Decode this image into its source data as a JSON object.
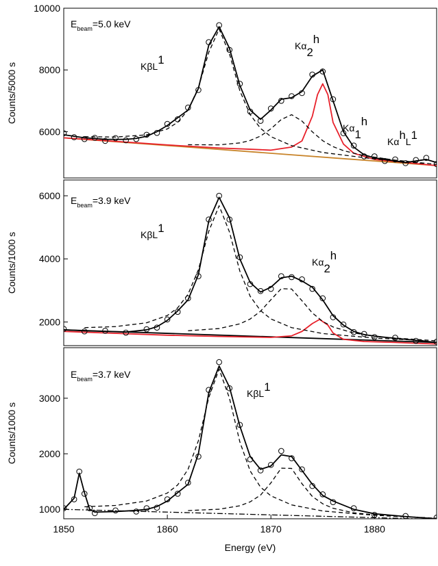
{
  "chart_data": [
    {
      "type": "line",
      "ylabel": "Counts/5000 s",
      "xlim": [
        1850,
        1886
      ],
      "ylim": [
        4500,
        10000
      ],
      "yticks": [
        6000,
        8000,
        10000
      ],
      "annotations": [
        {
          "parts": [
            {
              "t": "E"
            },
            {
              "t": "beam",
              "pos": "sub"
            },
            {
              "t": "=5.0 keV"
            }
          ]
        },
        {
          "parts": [
            {
              "t": "KβL"
            },
            {
              "t": "1",
              "pos": "sup"
            }
          ]
        },
        {
          "parts": [
            {
              "t": "Kα"
            },
            {
              "t": "2",
              "pos": "sub"
            },
            {
              "t": "h",
              "pos": "sup"
            }
          ]
        },
        {
          "parts": [
            {
              "t": "Kα"
            },
            {
              "t": "1",
              "pos": "sub"
            },
            {
              "t": "h",
              "pos": "sup"
            }
          ]
        },
        {
          "parts": [
            {
              "t": "Kα"
            },
            {
              "t": "h",
              "pos": "sup"
            },
            {
              "t": "L"
            },
            {
              "t": "1",
              "pos": "sup"
            }
          ]
        }
      ],
      "series": [
        {
          "style": "solid",
          "color": "#c8842a",
          "x": [
            1850,
            1886
          ],
          "values": [
            5800,
            4900
          ]
        },
        {
          "style": "solid",
          "color": "#e8202a",
          "x": [
            1850,
            1860,
            1865,
            1868,
            1870,
            1872,
            1873,
            1874,
            1874.5,
            1875,
            1875.5,
            1876,
            1877,
            1878,
            1880,
            1883,
            1886
          ],
          "values": [
            5800,
            5570,
            5470,
            5430,
            5400,
            5500,
            5700,
            6500,
            7200,
            7550,
            7200,
            6300,
            5600,
            5300,
            5100,
            5000,
            4900
          ]
        },
        {
          "style": "dash",
          "color": "#000000",
          "x": [
            1852,
            1855,
            1858,
            1860,
            1861,
            1862,
            1863,
            1864,
            1865,
            1866,
            1867,
            1868,
            1869,
            1870,
            1872,
            1875,
            1880,
            1885
          ],
          "values": [
            5838,
            5825,
            5897,
            6088,
            6305,
            6700,
            7425,
            8570,
            9325,
            8520,
            7325,
            6550,
            6105,
            5838,
            5547,
            5325,
            5117,
            4963
          ]
        },
        {
          "style": "dash",
          "color": "#000000",
          "x": [
            1862,
            1865,
            1867,
            1868,
            1869,
            1870,
            1871,
            1872,
            1873,
            1874,
            1875,
            1876,
            1877,
            1879,
            1882,
            1886
          ],
          "values": [
            5577,
            5572,
            5635,
            5714,
            5858,
            6093,
            6393,
            6550,
            6343,
            5993,
            5708,
            5514,
            5385,
            5222,
            5077,
            4940
          ]
        },
        {
          "style": "solid",
          "color": "#000000",
          "x": [
            1850,
            1851,
            1852,
            1853,
            1854,
            1855,
            1856,
            1857,
            1858,
            1859,
            1860,
            1861,
            1862,
            1863,
            1864,
            1865,
            1866,
            1867,
            1868,
            1869,
            1870,
            1871,
            1872,
            1873,
            1874,
            1875,
            1876,
            1877,
            1878,
            1879,
            1880,
            1881,
            1882,
            1883,
            1884,
            1885,
            1886
          ],
          "values": [
            5900,
            5850,
            5800,
            5780,
            5750,
            5750,
            5750,
            5780,
            5850,
            6000,
            6200,
            6450,
            6700,
            7400,
            8800,
            9400,
            8700,
            7500,
            6700,
            6400,
            6700,
            7050,
            7100,
            7300,
            7800,
            8000,
            7000,
            6000,
            5500,
            5250,
            5150,
            5100,
            5050,
            5000,
            5050,
            5100,
            5000
          ]
        },
        {
          "style": "marker",
          "color": "#000000",
          "x": [
            1850,
            1851,
            1852,
            1853,
            1854,
            1855,
            1856,
            1857,
            1858,
            1859,
            1860,
            1861,
            1862,
            1863,
            1864,
            1865,
            1866,
            1867,
            1868,
            1869,
            1870,
            1871,
            1872,
            1873,
            1874,
            1875,
            1876,
            1877,
            1878,
            1879,
            1880,
            1881,
            1882,
            1883,
            1884,
            1885,
            1886
          ],
          "values": [
            5950,
            5820,
            5760,
            5800,
            5700,
            5790,
            5720,
            5760,
            5900,
            5960,
            6250,
            6400,
            6780,
            7350,
            8900,
            9450,
            8650,
            7550,
            6650,
            6350,
            6750,
            7000,
            7150,
            7250,
            7850,
            7950,
            7050,
            5950,
            5550,
            5200,
            5200,
            5050,
            5100,
            4980,
            5080,
            5150,
            4950
          ]
        }
      ]
    },
    {
      "type": "line",
      "ylabel": "Counts/1000 s",
      "xlim": [
        1850,
        1886
      ],
      "ylim": [
        1250,
        6500
      ],
      "yticks": [
        2000,
        4000,
        6000
      ],
      "annotations": [
        {
          "parts": [
            {
              "t": "E"
            },
            {
              "t": "beam",
              "pos": "sub"
            },
            {
              "t": "=3.9 keV"
            }
          ]
        },
        {
          "parts": [
            {
              "t": "KβL"
            },
            {
              "t": "1",
              "pos": "sup"
            }
          ]
        },
        {
          "parts": [
            {
              "t": "Kα"
            },
            {
              "t": "2",
              "pos": "sub"
            },
            {
              "t": "h",
              "pos": "sup"
            }
          ]
        }
      ],
      "series": [
        {
          "style": "solid",
          "color": "#000000",
          "x": [
            1850,
            1886
          ],
          "values": [
            1750,
            1350
          ]
        },
        {
          "style": "solid",
          "color": "#e8202a",
          "x": [
            1850,
            1860,
            1865,
            1870,
            1872,
            1873,
            1874,
            1874.7,
            1875.5,
            1876,
            1877,
            1879,
            1882,
            1886
          ],
          "values": [
            1700,
            1580,
            1540,
            1510,
            1560,
            1700,
            1950,
            2080,
            1900,
            1650,
            1450,
            1380,
            1350,
            1300
          ]
        },
        {
          "style": "dash",
          "color": "#000000",
          "x": [
            1852,
            1855,
            1858,
            1860,
            1861,
            1862,
            1863,
            1864,
            1865,
            1866,
            1867,
            1868,
            1869,
            1870,
            1872,
            1875,
            1880,
            1885
          ],
          "values": [
            1820,
            1853,
            1974,
            2205,
            2448,
            2878,
            3655,
            4872,
            5685,
            4850,
            3611,
            2812,
            2360,
            2095,
            1820,
            1633,
            1490,
            1405
          ]
        },
        {
          "style": "dash",
          "color": "#000000",
          "x": [
            1862,
            1865,
            1867,
            1868,
            1869,
            1870,
            1871,
            1872,
            1873,
            1874,
            1875,
            1876,
            1878,
            1881,
            1886
          ],
          "values": [
            1722,
            1791,
            1941,
            2093,
            2341,
            2706,
            3055,
            3044,
            2673,
            2286,
            2016,
            1842,
            1648,
            1513,
            1402
          ]
        },
        {
          "style": "solid",
          "color": "#000000",
          "x": [
            1850,
            1852,
            1854,
            1856,
            1858,
            1859,
            1860,
            1861,
            1862,
            1863,
            1864,
            1865,
            1866,
            1867,
            1868,
            1869,
            1870,
            1871,
            1872,
            1873,
            1874,
            1875,
            1876,
            1877,
            1878,
            1879,
            1880,
            1882,
            1884,
            1886
          ],
          "values": [
            1750,
            1720,
            1700,
            1680,
            1750,
            1850,
            2050,
            2350,
            2700,
            3500,
            5200,
            5950,
            5300,
            4000,
            3250,
            2950,
            3100,
            3400,
            3450,
            3300,
            3100,
            2700,
            2200,
            1900,
            1700,
            1600,
            1550,
            1480,
            1420,
            1350
          ]
        },
        {
          "style": "marker",
          "color": "#000000",
          "x": [
            1850,
            1852,
            1854,
            1856,
            1858,
            1859,
            1860,
            1861,
            1862,
            1863,
            1864,
            1865,
            1866,
            1867,
            1868,
            1869,
            1870,
            1871,
            1872,
            1873,
            1874,
            1875,
            1876,
            1877,
            1878,
            1879,
            1880,
            1882,
            1884,
            1886
          ],
          "values": [
            1780,
            1700,
            1720,
            1660,
            1770,
            1820,
            2080,
            2320,
            2750,
            3450,
            5250,
            6000,
            5250,
            4050,
            3200,
            2980,
            3050,
            3450,
            3420,
            3350,
            3050,
            2750,
            2150,
            1920,
            1680,
            1620,
            1520,
            1500,
            1400,
            1370
          ]
        }
      ]
    },
    {
      "type": "line",
      "ylabel": "Counts/1000 s",
      "xlabel": "Energy (eV)",
      "xlim": [
        1850,
        1886
      ],
      "xticks": [
        1850,
        1860,
        1870,
        1880
      ],
      "ylim": [
        830,
        3910
      ],
      "yticks": [
        1000,
        2000,
        3000
      ],
      "annotations": [
        {
          "parts": [
            {
              "t": "E"
            },
            {
              "t": "beam",
              "pos": "sub"
            },
            {
              "t": "=3.7 keV"
            }
          ]
        },
        {
          "parts": [
            {
              "t": "KβL"
            },
            {
              "t": "1",
              "pos": "sup"
            }
          ]
        }
      ],
      "series": [
        {
          "style": "dashdot",
          "color": "#000000",
          "x": [
            1850,
            1886
          ],
          "values": [
            1000,
            820
          ]
        },
        {
          "style": "dash",
          "color": "#000000",
          "x": [
            1852,
            1855,
            1858,
            1860,
            1861,
            1862,
            1863,
            1864,
            1865,
            1866,
            1867,
            1868,
            1869,
            1870,
            1872,
            1875,
            1880,
            1885
          ],
          "values": [
            1046,
            1070,
            1150,
            1293,
            1439,
            1720,
            2235,
            3010,
            3525,
            3000,
            2215,
            1690,
            1399,
            1243,
            1080,
            970,
            893,
            850
          ]
        },
        {
          "style": "dash",
          "color": "#000000",
          "x": [
            1862,
            1865,
            1867,
            1868,
            1869,
            1870,
            1871,
            1872,
            1873,
            1874,
            1875,
            1876,
            1878,
            1881,
            1886
          ],
          "values": [
            978,
            1002,
            1064,
            1135,
            1256,
            1476,
            1741,
            1736,
            1461,
            1231,
            1100,
            1019,
            937,
            883,
            840
          ]
        },
        {
          "style": "solid",
          "color": "#000000",
          "x": [
            1850,
            1851,
            1851.5,
            1852,
            1852.5,
            1853,
            1855,
            1857,
            1858,
            1859,
            1860,
            1861,
            1862,
            1863,
            1864,
            1865,
            1866,
            1867,
            1868,
            1869,
            1870,
            1871,
            1872,
            1873,
            1874,
            1875,
            1876,
            1878,
            1880,
            1883,
            1886
          ],
          "values": [
            1000,
            1200,
            1650,
            1300,
            1000,
            950,
            960,
            980,
            1000,
            1050,
            1150,
            1300,
            1450,
            2000,
            3100,
            3580,
            3200,
            2500,
            1950,
            1720,
            1780,
            1980,
            1950,
            1700,
            1450,
            1250,
            1150,
            1000,
            920,
            870,
            830
          ]
        },
        {
          "style": "marker",
          "color": "#000000",
          "x": [
            1850,
            1851,
            1851.5,
            1852,
            1852.5,
            1853,
            1855,
            1857,
            1858,
            1859,
            1860,
            1861,
            1862,
            1863,
            1864,
            1865,
            1866,
            1867,
            1868,
            1869,
            1870,
            1871,
            1872,
            1873,
            1874,
            1875,
            1876,
            1878,
            1880,
            1883,
            1886
          ],
          "values": [
            1020,
            1180,
            1680,
            1280,
            1020,
            930,
            980,
            960,
            1020,
            1030,
            1180,
            1280,
            1480,
            1950,
            3150,
            3650,
            3180,
            2520,
            1900,
            1700,
            1800,
            2050,
            1920,
            1720,
            1420,
            1270,
            1130,
            1020,
            900,
            880,
            850
          ]
        }
      ]
    }
  ]
}
